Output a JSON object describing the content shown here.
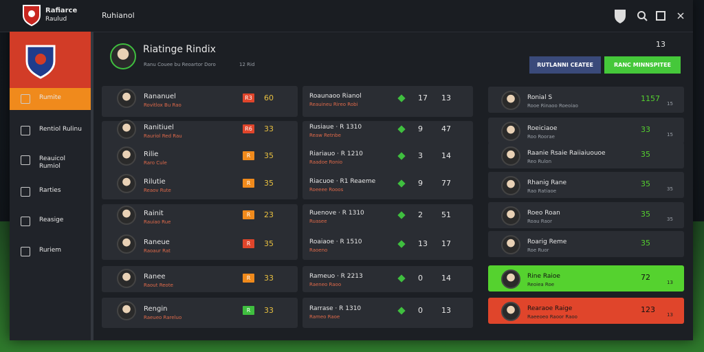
{
  "app": {
    "name": "Rafiarce",
    "subtitle": "Raulud"
  },
  "topbar": {
    "title": "Ruhianol"
  },
  "sidebar": [
    "Rumite",
    "Rentiol Rulinu",
    "Reauicol Rumiol",
    "Rarties",
    "Reasige",
    "Ruriem"
  ],
  "header": {
    "title": "Riatinge Rindix",
    "subtitle": "Ranu Couee bu Reoartor Doro",
    "meta": "12 Rid",
    "count": "13",
    "buttons": [
      "RUTLANNI CEATEE",
      "RANC MINNSPITEE"
    ]
  },
  "rows": [
    {
      "name": "Rananuel",
      "sub": "Rovitlox Bu Rao",
      "badge": "R3",
      "badge_color": "#e0452b",
      "score": "60",
      "label": "Roaunaoo Rianol",
      "label_sub": "Reauineu Rireo Robi",
      "a": "17",
      "b": "13"
    },
    {
      "name": "Ranitiuel",
      "sub": "Rauriol Red Rau",
      "badge": "R6",
      "badge_color": "#e0452b",
      "score": "33",
      "label": "Rusiaue · R 1310",
      "label_sub": "Reaw Retnbe",
      "a": "9",
      "b": "47"
    },
    {
      "name": "Rilie",
      "sub": "Raro Cule",
      "badge": "R",
      "badge_color": "#f08a1c",
      "score": "35",
      "label": "Riariauo · R 1210",
      "label_sub": "Raadoe Ronio",
      "a": "3",
      "b": "14"
    },
    {
      "name": "Rilutie",
      "sub": "Reaov Rute",
      "badge": "R",
      "badge_color": "#f08a1c",
      "score": "35",
      "label": "Riacuoe · R1 Reaeme",
      "label_sub": "Roeeee Rooos",
      "a": "9",
      "b": "77"
    },
    {
      "name": "Rainit",
      "sub": "Rauiao Rue",
      "badge": "R",
      "badge_color": "#f08a1c",
      "score": "23",
      "label": "Ruenove · R 1310",
      "label_sub": "Ruasee",
      "a": "2",
      "b": "51"
    },
    {
      "name": "Raneue",
      "sub": "Raoaur Rat",
      "badge": "R",
      "badge_color": "#e0452b",
      "score": "35",
      "label": "Roaiaoe · R 1510",
      "label_sub": "Raoeno",
      "a": "13",
      "b": "17"
    },
    {
      "name": "Ranee",
      "sub": "Raout Reote",
      "badge": "R",
      "badge_color": "#f08a1c",
      "score": "33",
      "label": "Rameuo · R 2213",
      "label_sub": "Raeneo Raoo",
      "a": "0",
      "b": "14"
    },
    {
      "name": "Rengin",
      "sub": "Raeueo Rareluo",
      "badge": "R",
      "badge_color": "#3fbf3f",
      "score": "33",
      "label": "Rarrase · R 1310",
      "label_sub": "Rameo Raoe",
      "a": "0",
      "b": "13"
    }
  ],
  "ranking": [
    {
      "name": "Ronial S",
      "sub": "Rooe Rinaoo Roeoiao",
      "score": "1157",
      "extra": "15"
    },
    {
      "name": "Roeiciaoe",
      "sub": "Roo Roorae",
      "score": "33",
      "extra": "15"
    },
    {
      "name": "Raanie Rsaie Raiiaiuouoe",
      "sub": "Reo Rulon",
      "score": "35"
    },
    {
      "name": "Rhanig Rane",
      "sub": "Rao Ratiaoe",
      "score": "35",
      "extra": "35"
    },
    {
      "name": "Roeo Roan",
      "sub": "Roau Raor",
      "score": "35",
      "extra": "35"
    },
    {
      "name": "Roarig Reme",
      "sub": "Roe Ruor",
      "score": "35"
    },
    {
      "name": "Rine Raioe",
      "sub": "Reoiea Roe",
      "score": "72",
      "extra": "13",
      "highlight": "#55d22f"
    },
    {
      "name": "Rearaoe Raige",
      "sub": "Raeeoeo Raoor Raoo",
      "score": "123",
      "extra": "13",
      "highlight": "#e0452b"
    }
  ]
}
